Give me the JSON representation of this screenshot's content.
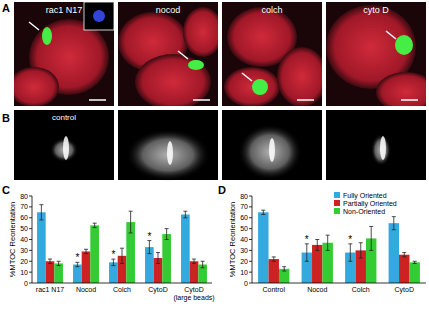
{
  "panels": {
    "A": {
      "label": "A",
      "images": [
        {
          "label": "rac1 N17"
        },
        {
          "label": "nocod"
        },
        {
          "label": "colch"
        },
        {
          "label": "cyto D"
        }
      ]
    },
    "B": {
      "label": "B",
      "image_label": "control"
    }
  },
  "chart_data": [
    {
      "type": "bar",
      "label": "C",
      "y_label": "%MTOC Reorientation",
      "categories": [
        "rac1 N17",
        "Nocod",
        "Colch",
        "CytoD",
        "CytoD (large beads)"
      ],
      "series": [
        {
          "name": "Fully Oriented",
          "color": "#33a9dd",
          "values": [
            65,
            17,
            19,
            33,
            63
          ],
          "errors": [
            7,
            2,
            3,
            6,
            3
          ],
          "annotations": [
            null,
            "*",
            "*",
            "*",
            null
          ]
        },
        {
          "name": "Partially Oriented",
          "color": "#cc2222",
          "values": [
            20,
            29,
            25,
            23,
            20
          ],
          "errors": [
            2,
            2,
            7,
            5,
            2
          ]
        },
        {
          "name": "Non-Oriented",
          "color": "#33cc33",
          "values": [
            18,
            53,
            56,
            45,
            17
          ],
          "errors": [
            2,
            2,
            10,
            5,
            3
          ]
        }
      ],
      "ylim": [
        0,
        80
      ],
      "yticks": [
        0,
        10,
        20,
        30,
        40,
        50,
        60,
        70,
        80
      ]
    },
    {
      "type": "bar",
      "label": "D",
      "y_label": "%MTOC Reorientation",
      "categories": [
        "Control",
        "Nocod",
        "Colch",
        "CytoD"
      ],
      "series": [
        {
          "name": "Fully Oriented",
          "color": "#33a9dd",
          "values": [
            65,
            28,
            28,
            55
          ],
          "errors": [
            2,
            8,
            8,
            6
          ],
          "annotations": [
            null,
            "*",
            "*",
            null
          ]
        },
        {
          "name": "Partially Oriented",
          "color": "#cc2222",
          "values": [
            22,
            35,
            30,
            26
          ],
          "errors": [
            2,
            5,
            7,
            2
          ]
        },
        {
          "name": "Non-Oriented",
          "color": "#33cc33",
          "values": [
            13,
            37,
            41,
            19
          ],
          "errors": [
            2,
            7,
            11,
            1
          ]
        }
      ],
      "ylim": [
        0,
        80
      ],
      "yticks": [
        0,
        10,
        20,
        30,
        40,
        50,
        60,
        70,
        80
      ],
      "legend": "top-right"
    }
  ]
}
